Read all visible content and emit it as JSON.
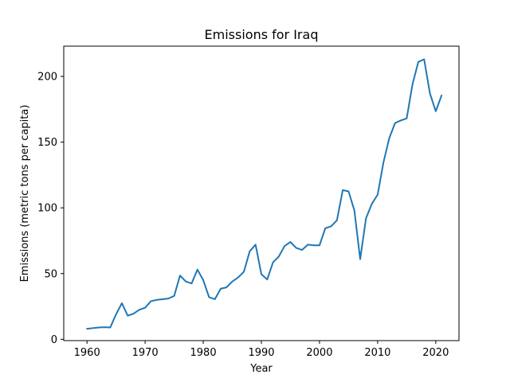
{
  "chart_data": {
    "type": "line",
    "title": "Emissions for Iraq",
    "xlabel": "Year",
    "ylabel": "Emissions (metric tons per capita)",
    "xlim": [
      1956,
      2024
    ],
    "ylim": [
      -1,
      223
    ],
    "xticks": [
      1960,
      1970,
      1980,
      1990,
      2000,
      2010,
      2020
    ],
    "yticks": [
      0,
      50,
      100,
      150,
      200
    ],
    "grid": false,
    "line_color": "#1f77b4",
    "series": [
      {
        "x": [
          1960,
          1961,
          1962,
          1963,
          1964,
          1965,
          1966,
          1967,
          1968,
          1969,
          1970,
          1971,
          1972,
          1973,
          1974,
          1975,
          1976,
          1977,
          1978,
          1979,
          1980,
          1981,
          1982,
          1983,
          1984,
          1985,
          1986,
          1987,
          1988,
          1989,
          1990,
          1991,
          1992,
          1993,
          1994,
          1995,
          1996,
          1997,
          1998,
          1999,
          2000,
          2001,
          2002,
          2003,
          2004,
          2005,
          2006,
          2007,
          2008,
          2009,
          2010,
          2011,
          2012,
          2013,
          2014,
          2015,
          2016,
          2017,
          2018,
          2019,
          2020,
          2021
        ],
        "values": [
          8,
          8.5,
          9,
          9.2,
          9,
          19,
          27.5,
          18,
          19.5,
          22.5,
          24,
          29,
          30,
          30.5,
          31,
          33,
          48.5,
          44,
          42.5,
          53,
          45,
          32,
          30.5,
          38.5,
          39.5,
          44,
          47,
          51.5,
          67,
          72,
          49.5,
          45.5,
          58.5,
          63,
          71,
          74,
          69.5,
          68,
          72,
          71.5,
          71.5,
          84.5,
          86,
          90.5,
          113.5,
          112.5,
          98,
          61,
          92,
          103,
          110,
          134.5,
          153,
          164.5,
          166.5,
          168,
          194,
          211,
          213,
          187,
          173.5,
          185.5
        ]
      }
    ]
  }
}
